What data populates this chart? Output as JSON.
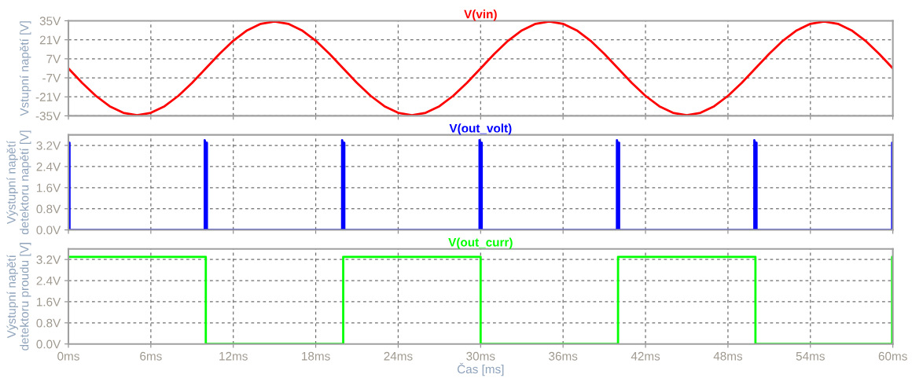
{
  "chart_data": [
    {
      "type": "line",
      "xlim": [
        0,
        60
      ],
      "xticks": [
        0,
        6,
        12,
        18,
        24,
        30,
        36,
        42,
        48,
        54,
        60
      ],
      "ylim": [
        -35,
        35
      ],
      "yticks": [
        {
          "value": -35,
          "label": "-35V"
        },
        {
          "value": -21,
          "label": "-21V"
        },
        {
          "value": -7,
          "label": "-7V"
        },
        {
          "value": 7,
          "label": "7V"
        },
        {
          "value": 21,
          "label": "21V"
        },
        {
          "value": 35,
          "label": "35V"
        }
      ],
      "ylabel": "Vstupní napětí [V]",
      "grid": true,
      "tick_labels": "y",
      "legend": "top",
      "series": [
        {
          "name": "V(vin)",
          "color": "#ff0000",
          "x": [
            0,
            1,
            2,
            3,
            4,
            5,
            6,
            7,
            8,
            9,
            10,
            11,
            12,
            13,
            14,
            15,
            16,
            17,
            18,
            19,
            20,
            21,
            22,
            23,
            24,
            25,
            26,
            27,
            28,
            29,
            30,
            31,
            32,
            33,
            34,
            35,
            36,
            37,
            38,
            39,
            40,
            41,
            42,
            43,
            44,
            45,
            46,
            47,
            48,
            49,
            50,
            51,
            52,
            53,
            54,
            55,
            56,
            57,
            58,
            59,
            60
          ],
          "values": [
            0,
            -10.7,
            -20.3,
            -27.9,
            -32.8,
            -34.5,
            -32.8,
            -27.9,
            -20.3,
            -10.7,
            0,
            10.7,
            20.3,
            27.9,
            32.8,
            34.5,
            32.8,
            27.9,
            20.3,
            10.7,
            0,
            -10.7,
            -20.3,
            -27.9,
            -32.8,
            -34.5,
            -32.8,
            -27.9,
            -20.3,
            -10.7,
            0,
            10.7,
            20.3,
            27.9,
            32.8,
            34.5,
            32.8,
            27.9,
            20.3,
            10.7,
            0,
            -10.7,
            -20.3,
            -27.9,
            -32.8,
            -34.5,
            -32.8,
            -27.9,
            -20.3,
            -10.7,
            0,
            10.7,
            20.3,
            27.9,
            32.8,
            34.5,
            32.8,
            27.9,
            20.3,
            10.7,
            0
          ]
        }
      ]
    },
    {
      "type": "line",
      "xlim": [
        0,
        60
      ],
      "xticks": [
        0,
        6,
        12,
        18,
        24,
        30,
        36,
        42,
        48,
        54,
        60
      ],
      "ylim": [
        0,
        3.6
      ],
      "yticks": [
        {
          "value": 0,
          "label": "0.0V"
        },
        {
          "value": 0.8,
          "label": "0.8V"
        },
        {
          "value": 1.6,
          "label": "1.6V"
        },
        {
          "value": 2.4,
          "label": "2.4V"
        },
        {
          "value": 3.2,
          "label": "3.2V"
        }
      ],
      "ylabel": "Výstupní napětí\ndetektoru napětí [V]",
      "grid": true,
      "tick_labels": "y",
      "legend": "top",
      "series": [
        {
          "name": "V(out_volt)",
          "color": "#0000ff",
          "x": [
            0,
            0.08,
            0.08,
            9.92,
            9.92,
            9.97,
            10.08,
            10.08,
            19.92,
            19.92,
            19.97,
            20.08,
            20.08,
            29.92,
            29.92,
            29.97,
            30.08,
            30.08,
            39.92,
            39.92,
            39.97,
            40.08,
            40.08,
            49.92,
            49.92,
            49.97,
            50.08,
            50.08,
            59.95,
            59.95,
            60
          ],
          "values": [
            3.3,
            3.3,
            0,
            0,
            3.4,
            3.3,
            3.3,
            0,
            0,
            3.4,
            3.3,
            3.3,
            0,
            0,
            3.4,
            3.3,
            3.3,
            0,
            0,
            3.4,
            3.3,
            3.3,
            0,
            0,
            3.4,
            3.3,
            3.3,
            0,
            0,
            3.3,
            3.3
          ]
        }
      ]
    },
    {
      "type": "line",
      "xlim": [
        0,
        60
      ],
      "xticks": [
        {
          "value": 0,
          "label": "0ms"
        },
        {
          "value": 6,
          "label": "6ms"
        },
        {
          "value": 12,
          "label": "12ms"
        },
        {
          "value": 18,
          "label": "18ms"
        },
        {
          "value": 24,
          "label": "24ms"
        },
        {
          "value": 30,
          "label": "30ms"
        },
        {
          "value": 36,
          "label": "36ms"
        },
        {
          "value": 42,
          "label": "42ms"
        },
        {
          "value": 48,
          "label": "48ms"
        },
        {
          "value": 54,
          "label": "54ms"
        },
        {
          "value": 60,
          "label": "60ms"
        }
      ],
      "ylim": [
        0,
        3.6
      ],
      "yticks": [
        {
          "value": 0,
          "label": "0.0V"
        },
        {
          "value": 0.8,
          "label": "0.8V"
        },
        {
          "value": 1.6,
          "label": "1.6V"
        },
        {
          "value": 2.4,
          "label": "2.4V"
        },
        {
          "value": 3.2,
          "label": "3.2V"
        }
      ],
      "xlabel": "Čas [ms]",
      "ylabel": "Výstupní napětí\ndetektoru proudu [V]",
      "grid": true,
      "legend": "top",
      "series": [
        {
          "name": "V(out_curr)",
          "color": "#00ff00",
          "x": [
            0,
            10,
            10,
            20,
            20,
            30,
            30,
            40,
            40,
            50,
            50,
            59.95,
            59.95,
            60
          ],
          "values": [
            3.3,
            3.3,
            0,
            0,
            3.3,
            3.3,
            0,
            0,
            3.3,
            3.3,
            0,
            0,
            3.3,
            3.3
          ]
        }
      ]
    }
  ]
}
